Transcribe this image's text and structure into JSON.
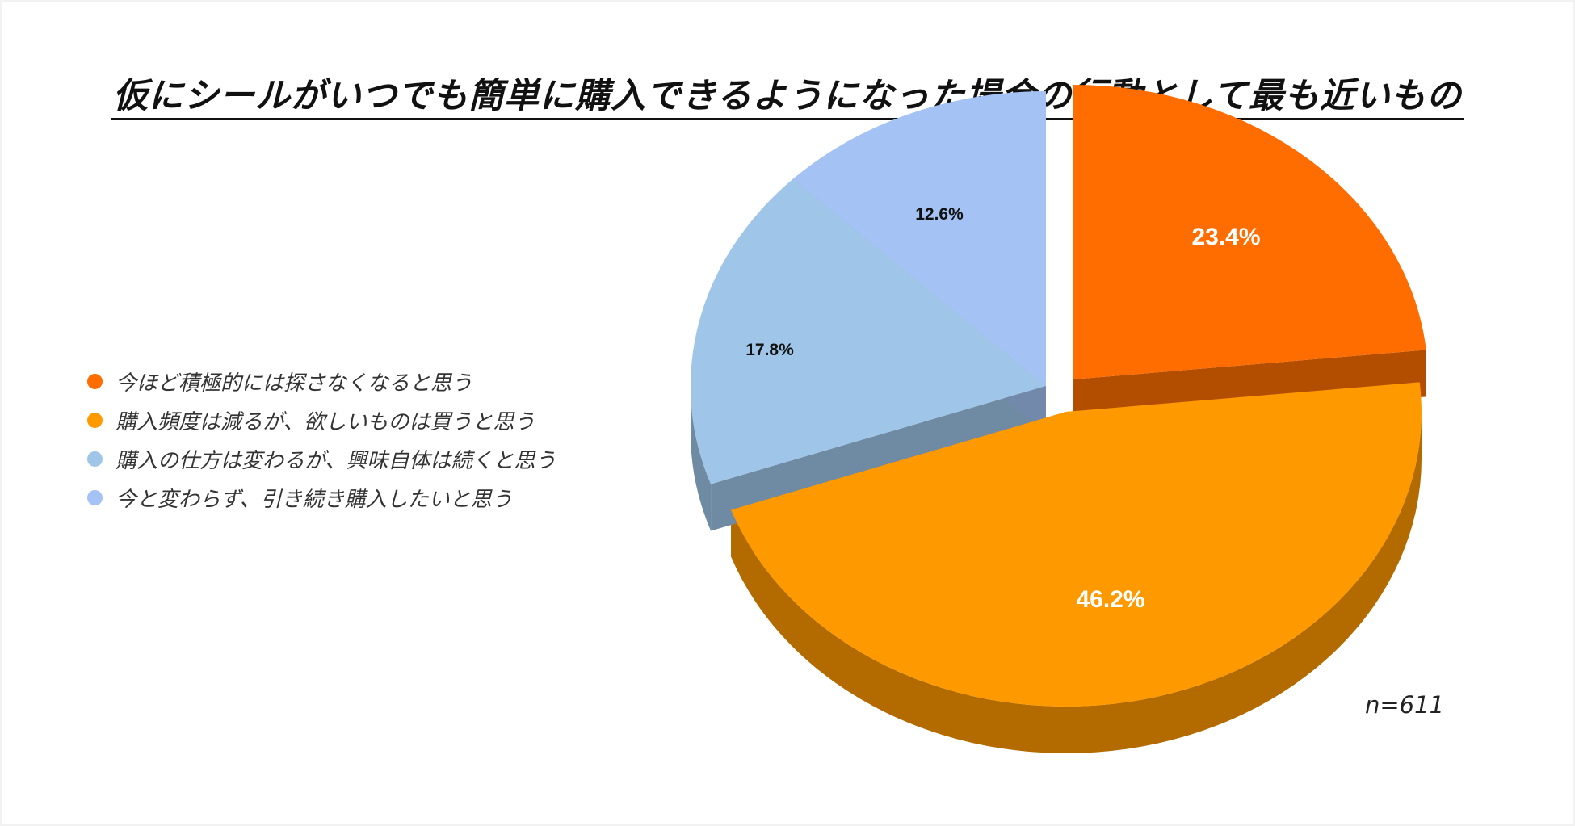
{
  "title": "仮にシールがいつでも簡単に購入できるようになった場合の行動として最も近いもの",
  "sample_size": "n=611",
  "legend": [
    {
      "label": "今ほど積極的には探さなくなると思う",
      "color": "#ff6d00"
    },
    {
      "label": "購入頻度は減るが、欲しいものは買うと思う",
      "color": "#ff9900"
    },
    {
      "label": "購入の仕方は変わるが、興味自体は続くと思う",
      "color": "#9fc5e8"
    },
    {
      "label": "今と変わらず、引き続き購入したいと思う",
      "color": "#a4c2f4"
    }
  ],
  "chart_data": {
    "type": "pie",
    "style": "3d-exploded",
    "title": "仮にシールがいつでも簡単に購入できるようになった場合の行動として最も近いもの",
    "categories": [
      "今ほど積極的には探さなくなると思う",
      "購入頻度は減るが、欲しいものは買うと思う",
      "購入の仕方は変わるが、興味自体は続くと思う",
      "今と変わらず、引き続き購入したいと思う"
    ],
    "values": [
      23.4,
      46.2,
      17.8,
      12.6
    ],
    "labels": [
      "23.4%",
      "46.2%",
      "17.8%",
      "12.6%"
    ],
    "colors": [
      "#ff6d00",
      "#ff9900",
      "#9fc5e8",
      "#a4c2f4"
    ],
    "side_colors": [
      "#b34d00",
      "#b36b00",
      "#6f8aa3",
      "#7389ab"
    ],
    "label_colors": [
      "#ffffff",
      "#ffffff",
      "#111111",
      "#111111"
    ],
    "legend_position": "left",
    "annotation": "n=611"
  }
}
